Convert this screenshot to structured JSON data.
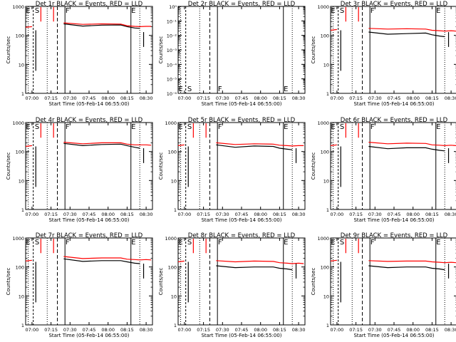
{
  "figure": {
    "series_colors": {
      "events": "#000000",
      "lld": "#ff0000"
    },
    "background": "#ffffff"
  },
  "chart_data": [
    {
      "type": "line",
      "title": "Det 1r BLACK = Events, RED = LLD",
      "xlabel": "Start Time (05-Feb-14 06:55:00)",
      "ylabel": "Counts/sec",
      "yscale": "log",
      "ylim": [
        1,
        1000
      ],
      "x_ticks": [
        "07:00",
        "07:15",
        "07:30",
        "07:45",
        "08:00",
        "08:15",
        "08:30"
      ],
      "y_ticks": [
        "1",
        "10",
        "100",
        "1000"
      ],
      "markers": [
        "E",
        "S",
        "F",
        "E"
      ],
      "x": [
        0,
        5,
        15,
        30,
        45,
        60,
        75,
        80,
        86,
        90,
        95,
        99
      ],
      "series": [
        {
          "name": "BLACK",
          "values": [
            null,
            null,
            null,
            250,
            210,
            225,
            230,
            200,
            180,
            175,
            null,
            null
          ]
        },
        {
          "name": "RED",
          "values": [
            190,
            200,
            null,
            270,
            240,
            250,
            245,
            215,
            205,
            200,
            205,
            205
          ]
        }
      ],
      "grid": false
    },
    {
      "type": "line",
      "title": "Det 2r BLACK = Events, RED = LLD",
      "xlabel": "Start Time (05-Feb-14 06:55:00)",
      "ylabel": "Counts/sec",
      "yscale": "log",
      "ylim": [
        1e-06,
        1
      ],
      "x_ticks": [
        "07:00",
        "07:15",
        "07:30",
        "07:45",
        "08:00",
        "08:15",
        "08:30"
      ],
      "y_ticks": [
        "10⁰",
        "10⁻¹",
        "10⁻²",
        "10⁻³",
        "10⁻⁴",
        "10⁻⁵",
        "10⁻⁶"
      ],
      "markers": [
        "E",
        "S",
        "F",
        "E"
      ],
      "x": [],
      "series": [],
      "grid": false
    },
    {
      "type": "line",
      "title": "Det 3r BLACK = Events, RED = LLD",
      "xlabel": "Start Time (05-Feb-14 06:55:00)",
      "ylabel": "Counts/sec",
      "yscale": "log",
      "ylim": [
        1,
        1000
      ],
      "x_ticks": [
        "07:00",
        "07:15",
        "07:30",
        "07:45",
        "08:00",
        "08:15",
        "08:30"
      ],
      "y_ticks": [
        "1",
        "10",
        "100",
        "1000"
      ],
      "markers": [
        "E",
        "S",
        "F",
        "E"
      ],
      "x": [
        0,
        5,
        15,
        30,
        45,
        60,
        75,
        80,
        86,
        90,
        95,
        99
      ],
      "series": [
        {
          "name": "BLACK",
          "values": [
            null,
            null,
            null,
            130,
            110,
            115,
            120,
            105,
            95,
            90,
            null,
            null
          ]
        },
        {
          "name": "RED",
          "values": [
            150,
            160,
            null,
            175,
            165,
            170,
            165,
            150,
            145,
            140,
            145,
            140
          ]
        }
      ],
      "grid": false
    },
    {
      "type": "line",
      "title": "Det 4r BLACK = Events, RED = LLD",
      "xlabel": "Start Time (05-Feb-14 06:55:00)",
      "ylabel": "Counts/sec",
      "yscale": "log",
      "ylim": [
        1,
        1000
      ],
      "x_ticks": [
        "07:00",
        "07:15",
        "07:30",
        "07:45",
        "08:00",
        "08:15",
        "08:30"
      ],
      "y_ticks": [
        "1",
        "10",
        "100",
        "1000"
      ],
      "markers": [
        "E",
        "S",
        "F",
        "E"
      ],
      "x": [
        0,
        5,
        15,
        30,
        45,
        60,
        75,
        80,
        86,
        90,
        95,
        99
      ],
      "series": [
        {
          "name": "BLACK",
          "values": [
            null,
            null,
            null,
            190,
            160,
            175,
            180,
            160,
            140,
            130,
            null,
            null
          ]
        },
        {
          "name": "RED",
          "values": [
            150,
            160,
            null,
            210,
            185,
            200,
            200,
            180,
            170,
            170,
            170,
            165
          ]
        }
      ],
      "grid": false
    },
    {
      "type": "line",
      "title": "Det 5r BLACK = Events, RED = LLD",
      "xlabel": "Start Time (05-Feb-14 06:55:00)",
      "ylabel": "Counts/sec",
      "yscale": "log",
      "ylim": [
        1,
        1000
      ],
      "x_ticks": [
        "07:00",
        "07:15",
        "07:30",
        "07:45",
        "08:00",
        "08:15",
        "08:30"
      ],
      "y_ticks": [
        "1",
        "10",
        "100",
        "1000"
      ],
      "markers": [
        "E",
        "S",
        "F",
        "E"
      ],
      "x": [
        0,
        5,
        15,
        30,
        45,
        60,
        75,
        80,
        86,
        90,
        95,
        99
      ],
      "series": [
        {
          "name": "BLACK",
          "values": [
            null,
            null,
            null,
            170,
            140,
            155,
            150,
            130,
            120,
            115,
            null,
            null
          ]
        },
        {
          "name": "RED",
          "values": [
            160,
            170,
            null,
            200,
            175,
            185,
            180,
            165,
            160,
            155,
            160,
            160
          ]
        }
      ],
      "grid": false
    },
    {
      "type": "line",
      "title": "Det 6r BLACK = Events, RED = LLD",
      "xlabel": "Start Time (05-Feb-14 06:55:00)",
      "ylabel": "Counts/sec",
      "yscale": "log",
      "ylim": [
        1,
        1000
      ],
      "x_ticks": [
        "07:00",
        "07:15",
        "07:30",
        "07:45",
        "08:00",
        "08:15",
        "08:30"
      ],
      "y_ticks": [
        "1",
        "10",
        "100",
        "1000"
      ],
      "markers": [
        "E",
        "S",
        "F",
        "E"
      ],
      "x": [
        0,
        5,
        15,
        30,
        45,
        60,
        75,
        80,
        86,
        90,
        95,
        99
      ],
      "series": [
        {
          "name": "BLACK",
          "values": [
            null,
            null,
            null,
            150,
            125,
            135,
            135,
            120,
            110,
            105,
            null,
            null
          ]
        },
        {
          "name": "RED",
          "values": [
            160,
            170,
            null,
            210,
            185,
            195,
            190,
            170,
            165,
            160,
            165,
            160
          ]
        }
      ],
      "grid": false
    },
    {
      "type": "line",
      "title": "Det 7r BLACK = Events, RED = LLD",
      "xlabel": "Start Time (05-Feb-14 06:55:00)",
      "ylabel": "Counts/sec",
      "yscale": "log",
      "ylim": [
        1,
        1000
      ],
      "x_ticks": [
        "07:00",
        "07:15",
        "07:30",
        "07:45",
        "08:00",
        "08:15",
        "08:30"
      ],
      "y_ticks": [
        "1",
        "10",
        "100",
        "1000"
      ],
      "markers": [
        "E",
        "S",
        "F",
        "E"
      ],
      "x": [
        0,
        5,
        15,
        30,
        45,
        60,
        75,
        80,
        86,
        90,
        95,
        99
      ],
      "series": [
        {
          "name": "BLACK",
          "values": [
            null,
            null,
            null,
            190,
            155,
            165,
            165,
            150,
            135,
            130,
            null,
            null
          ]
        },
        {
          "name": "RED",
          "values": [
            160,
            170,
            null,
            230,
            195,
            205,
            205,
            185,
            180,
            175,
            180,
            175
          ]
        }
      ],
      "grid": false
    },
    {
      "type": "line",
      "title": "Det 8r BLACK = Events, RED = LLD",
      "xlabel": "Start Time (05-Feb-14 06:55:00)",
      "ylabel": "Counts/sec",
      "yscale": "log",
      "ylim": [
        1,
        1000
      ],
      "x_ticks": [
        "07:00",
        "07:15",
        "07:30",
        "07:45",
        "08:00",
        "08:15",
        "08:30"
      ],
      "y_ticks": [
        "1",
        "10",
        "100",
        "1000"
      ],
      "markers": [
        "E",
        "S",
        "F",
        "E"
      ],
      "x": [
        0,
        5,
        15,
        30,
        45,
        60,
        75,
        80,
        86,
        90,
        95,
        99
      ],
      "series": [
        {
          "name": "BLACK",
          "values": [
            null,
            null,
            null,
            110,
            95,
            100,
            100,
            90,
            85,
            80,
            null,
            null
          ]
        },
        {
          "name": "RED",
          "values": [
            150,
            160,
            null,
            165,
            150,
            160,
            155,
            140,
            135,
            130,
            135,
            130
          ]
        }
      ],
      "grid": false
    },
    {
      "type": "line",
      "title": "Det 9r BLACK = Events, RED = LLD",
      "xlabel": "Start Time (05-Feb-14 06:55:00)",
      "ylabel": "Counts/sec",
      "yscale": "log",
      "ylim": [
        1,
        1000
      ],
      "x_ticks": [
        "07:00",
        "07:15",
        "07:30",
        "07:45",
        "08:00",
        "08:15",
        "08:30"
      ],
      "y_ticks": [
        "1",
        "10",
        "100",
        "1000"
      ],
      "markers": [
        "E",
        "S",
        "F",
        "E"
      ],
      "x": [
        0,
        5,
        15,
        30,
        45,
        60,
        75,
        80,
        86,
        90,
        95,
        99
      ],
      "series": [
        {
          "name": "BLACK",
          "values": [
            null,
            null,
            null,
            110,
            95,
            100,
            100,
            90,
            85,
            80,
            null,
            null
          ]
        },
        {
          "name": "RED",
          "values": [
            160,
            170,
            null,
            165,
            155,
            160,
            160,
            150,
            145,
            140,
            145,
            140
          ]
        }
      ],
      "grid": false
    }
  ]
}
